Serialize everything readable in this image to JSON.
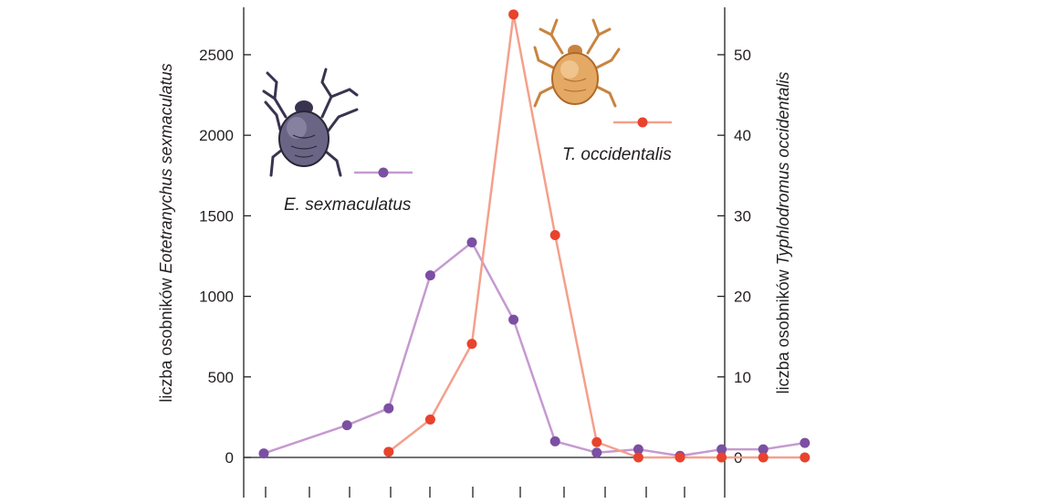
{
  "chart_data": {
    "type": "line",
    "x": [
      1,
      2,
      3,
      4,
      5,
      6,
      7,
      8,
      9,
      10,
      11,
      12,
      13,
      14,
      15,
      16
    ],
    "ylabel_left": {
      "prefix": "liczba osobników ",
      "species": "Eotetranychus sexmaculatus"
    },
    "ylabel_right": {
      "prefix": "liczba osobników ",
      "species": "Typhlodromus occidentalis"
    },
    "ylim_left": [
      0,
      2800
    ],
    "ylim_right": [
      0,
      56
    ],
    "yticks_left": [
      "0",
      "500",
      "1000",
      "1500",
      "2000",
      "2500"
    ],
    "yticks_right": [
      "0",
      "10",
      "20",
      "30",
      "40",
      "50"
    ],
    "series": [
      {
        "name": "E. sexmaculatus",
        "axis": "left",
        "color": "#7b4fa2",
        "line_color": "#c59ad0",
        "points": [
          [
            1,
            25
          ],
          [
            3,
            200
          ],
          [
            4,
            305
          ],
          [
            5,
            1130
          ],
          [
            6,
            1335
          ],
          [
            7,
            855
          ],
          [
            8,
            100
          ],
          [
            9,
            30
          ],
          [
            10,
            50
          ],
          [
            11,
            10
          ],
          [
            12,
            50
          ],
          [
            13,
            50
          ],
          [
            14,
            90
          ]
        ]
      },
      {
        "name": "T. occidentalis",
        "axis": "right",
        "color": "#e8432d",
        "line_color": "#f4a08c",
        "points": [
          [
            4,
            0.7
          ],
          [
            5,
            4.7
          ],
          [
            6,
            14.1
          ],
          [
            7,
            55
          ],
          [
            8,
            27.6
          ],
          [
            9,
            1.9
          ],
          [
            10,
            0
          ],
          [
            11,
            0
          ],
          [
            12,
            0
          ],
          [
            13,
            0
          ],
          [
            14,
            0
          ]
        ]
      }
    ],
    "legend": [
      "E. sexmaculatus",
      "T. occidentalis"
    ],
    "grid": false
  }
}
